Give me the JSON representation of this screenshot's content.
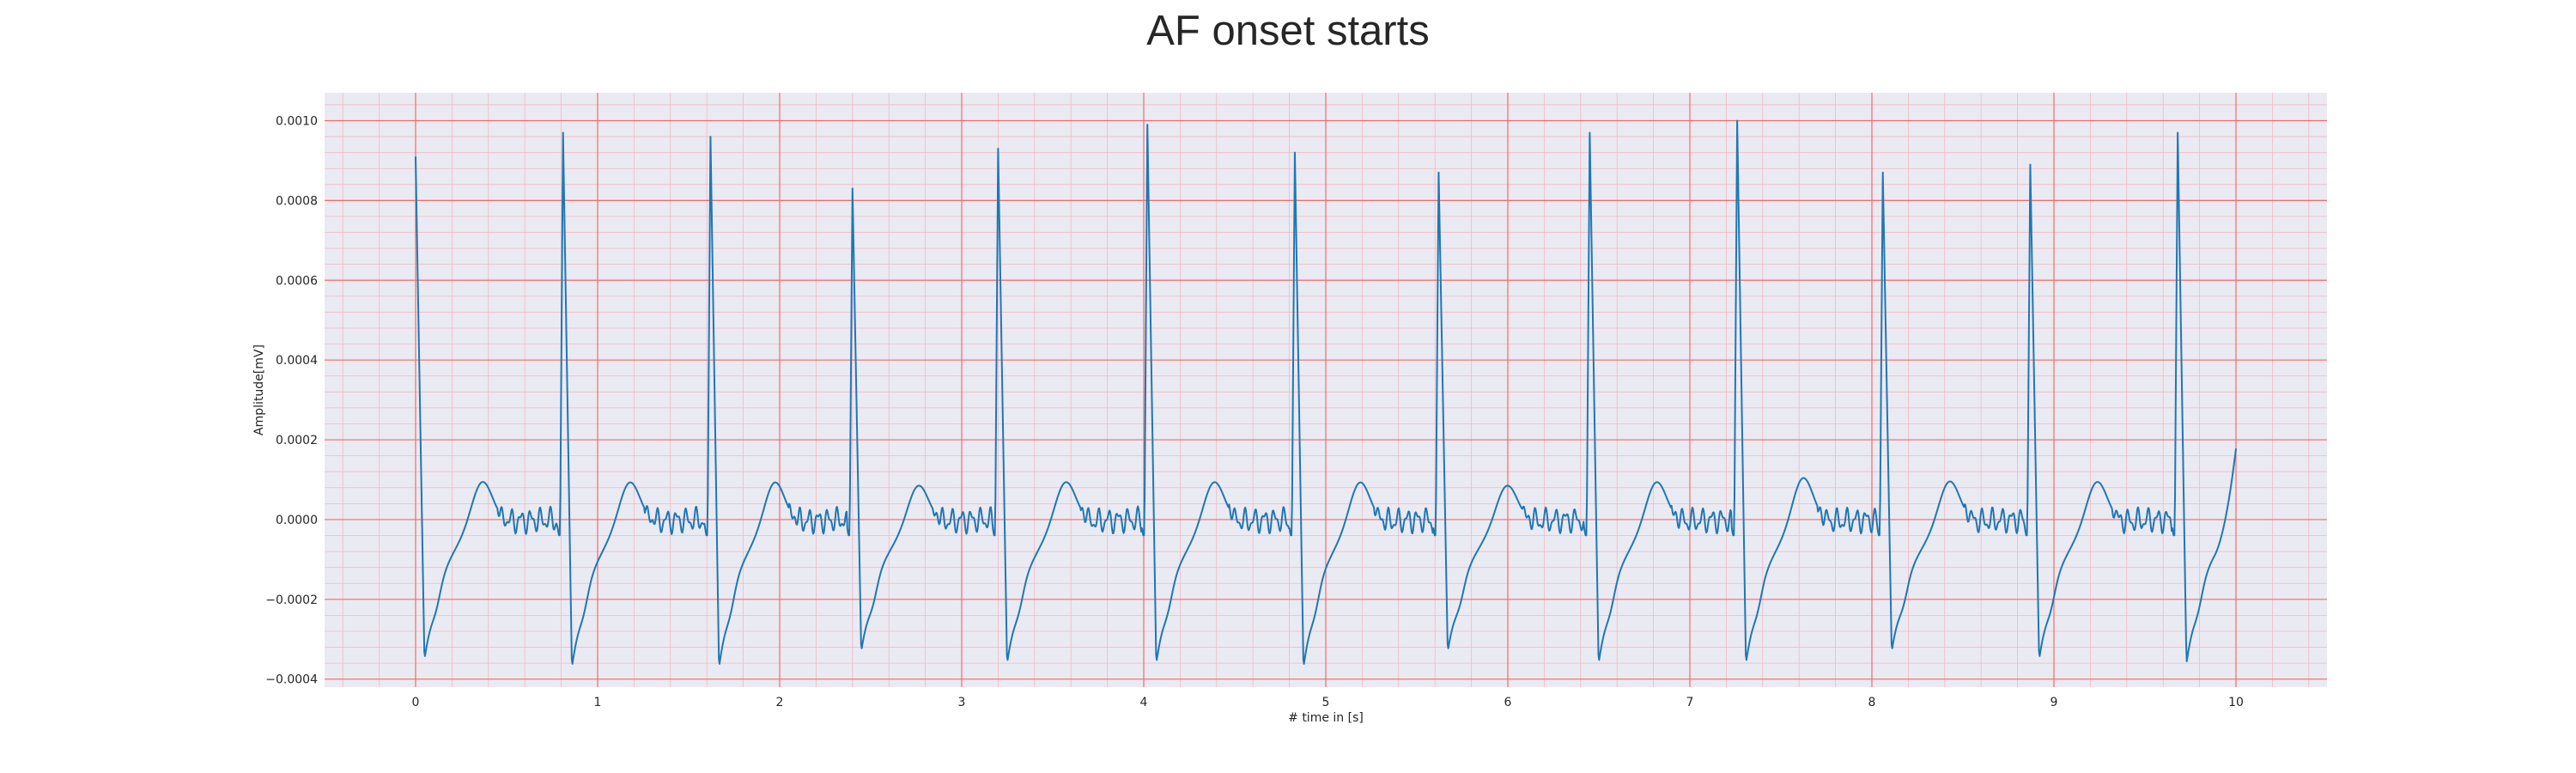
{
  "chart_data": {
    "type": "line",
    "title": "AF onset starts",
    "xlabel": "# time in [s]",
    "ylabel": "Amplitude[mV]",
    "xlim": [
      -0.5,
      10.5
    ],
    "ylim": [
      -0.00042,
      0.00107
    ],
    "x_ticks": [
      0,
      1,
      2,
      3,
      4,
      5,
      6,
      7,
      8,
      9,
      10
    ],
    "x_tick_labels": [
      "0",
      "1",
      "2",
      "3",
      "4",
      "5",
      "6",
      "7",
      "8",
      "9",
      "10"
    ],
    "y_ticks": [
      -0.0004,
      -0.0002,
      0.0,
      0.0002,
      0.0004,
      0.0006,
      0.0008,
      0.001
    ],
    "y_tick_labels": [
      "−0.0004",
      "−0.0002",
      "0.0000",
      "0.0002",
      "0.0004",
      "0.0006",
      "0.0008",
      "0.0010"
    ],
    "grid": true,
    "background_color": "#eaeaf2",
    "major_grid_color": "#f26b6b",
    "minor_grid_color": "#f4b7c3",
    "series": [
      {
        "color": "#1f77b4",
        "r_peak_times": [
          0.0,
          0.81,
          1.62,
          2.4,
          3.2,
          4.02,
          4.83,
          5.62,
          6.45,
          7.26,
          8.06,
          8.87,
          9.68
        ],
        "r_peak_values": [
          0.00091,
          0.00097,
          0.00096,
          0.00083,
          0.00093,
          0.00099,
          0.00092,
          0.00087,
          0.00097,
          0.001,
          0.00087,
          0.00089,
          0.00097
        ],
        "s_wave_values": [
          -0.00035,
          -0.00037,
          -0.00037,
          -0.00033,
          -0.00036,
          -0.00036,
          -0.00037,
          -0.00033,
          -0.00036,
          -0.00036,
          -0.00033,
          -0.00035,
          -0.00036
        ],
        "t_wave_values": [
          0.00011,
          0.00011,
          0.00011,
          0.0001,
          0.00011,
          0.00011,
          0.00011,
          0.0001,
          0.00011,
          0.00012,
          0.00011,
          0.00011,
          0.00011
        ],
        "end_value": 9e-05,
        "end_time": 10.0
      }
    ]
  }
}
